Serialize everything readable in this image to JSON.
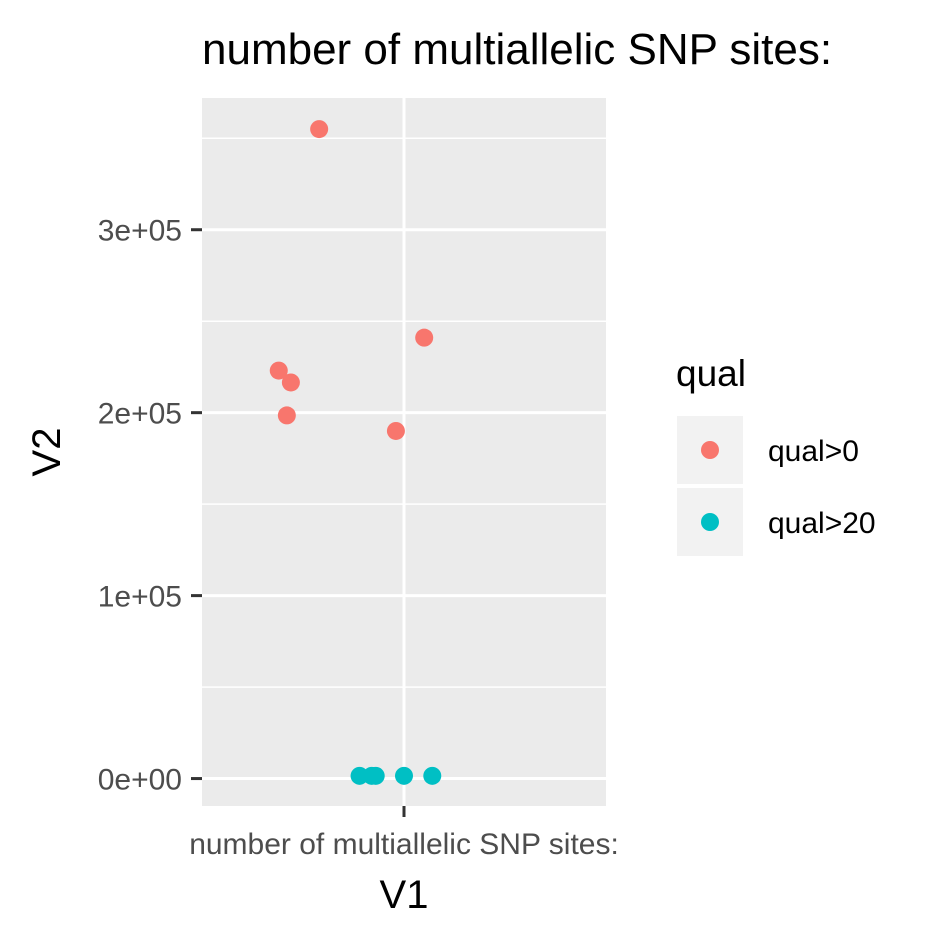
{
  "chart_data": {
    "type": "scatter",
    "title": "number of multiallelic SNP sites:",
    "xlabel": "V1",
    "ylabel": "V2",
    "x_categories": [
      "number of multiallelic SNP sites:"
    ],
    "ylim": [
      -15000,
      372000
    ],
    "yticks": [
      {
        "value": 0,
        "label": "0e+00"
      },
      {
        "value": 100000,
        "label": "1e+05"
      },
      {
        "value": 200000,
        "label": "2e+05"
      },
      {
        "value": 300000,
        "label": "3e+05"
      }
    ],
    "jitter_range": [
      -0.5,
      0.5
    ],
    "grid": true,
    "legend": {
      "title": "qual",
      "position": "right"
    },
    "series": [
      {
        "name": "qual>0",
        "color": "#F8766D",
        "points": [
          {
            "jitter": -0.21,
            "y": 355000
          },
          {
            "jitter": 0.05,
            "y": 241000
          },
          {
            "jitter": -0.31,
            "y": 223000
          },
          {
            "jitter": -0.28,
            "y": 216500
          },
          {
            "jitter": -0.29,
            "y": 198500
          },
          {
            "jitter": -0.02,
            "y": 190000
          }
        ]
      },
      {
        "name": "qual>20",
        "color": "#00BFC4",
        "points": [
          {
            "jitter": -0.11,
            "y": 1500
          },
          {
            "jitter": -0.08,
            "y": 1500
          },
          {
            "jitter": -0.07,
            "y": 1500
          },
          {
            "jitter": 0.0,
            "y": 1500
          },
          {
            "jitter": 0.07,
            "y": 1500
          }
        ]
      }
    ]
  }
}
